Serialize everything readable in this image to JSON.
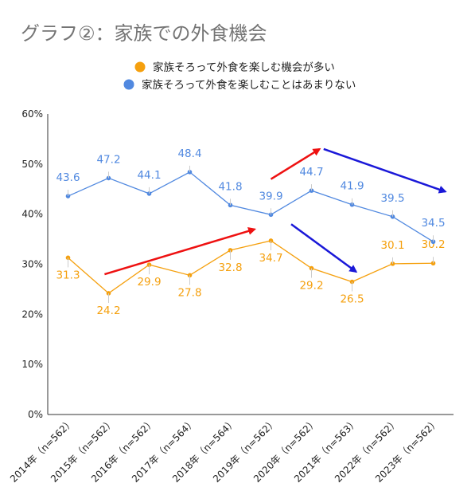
{
  "chart_data": {
    "type": "line",
    "title": "グラフ②：家族での外食機会",
    "categories": [
      "2014年（n=562）",
      "2015年（n=562）",
      "2016年（n=562）",
      "2017年（n=564）",
      "2018年（n=564）",
      "2019年（n=562）",
      "2020年（n=562）",
      "2021年（n=563）",
      "2022年（n=562）",
      "2023年（n=562）"
    ],
    "series": [
      {
        "name": "家族そろって外食を楽しむ機会が多い",
        "color": "#f5a00e",
        "values": [
          31.3,
          24.2,
          29.9,
          27.8,
          32.8,
          34.7,
          29.2,
          26.5,
          30.1,
          30.2
        ],
        "label_offsets": [
          "below",
          "below",
          "below",
          "below",
          "below",
          "below",
          "below",
          "below",
          "above",
          "above"
        ]
      },
      {
        "name": "家族そろって外食を楽しむことはあまりない",
        "color": "#5189e0",
        "values": [
          43.6,
          47.2,
          44.1,
          48.4,
          41.8,
          39.9,
          44.7,
          41.9,
          39.5,
          34.5
        ],
        "label_offsets": [
          "above",
          "above",
          "above",
          "above",
          "above",
          "above",
          "above",
          "above",
          "above",
          "above"
        ]
      }
    ],
    "yticks": [
      "0%",
      "10%",
      "20%",
      "30%",
      "40%",
      "50%",
      "60%"
    ],
    "ylim": [
      0,
      60
    ],
    "xlabel": "",
    "ylabel": "",
    "legend": "top",
    "grid": false,
    "annotations": {
      "red_arrows": [
        {
          "from": [
            0.9,
            28
          ],
          "to": [
            4.6,
            37
          ]
        },
        {
          "from": [
            5.0,
            47
          ],
          "to": [
            6.2,
            53
          ]
        }
      ],
      "blue_arrows": [
        {
          "from": [
            5.5,
            38
          ],
          "to": [
            7.1,
            28.5
          ]
        },
        {
          "from": [
            6.3,
            53
          ],
          "to": [
            9.3,
            44.5
          ]
        }
      ]
    }
  }
}
